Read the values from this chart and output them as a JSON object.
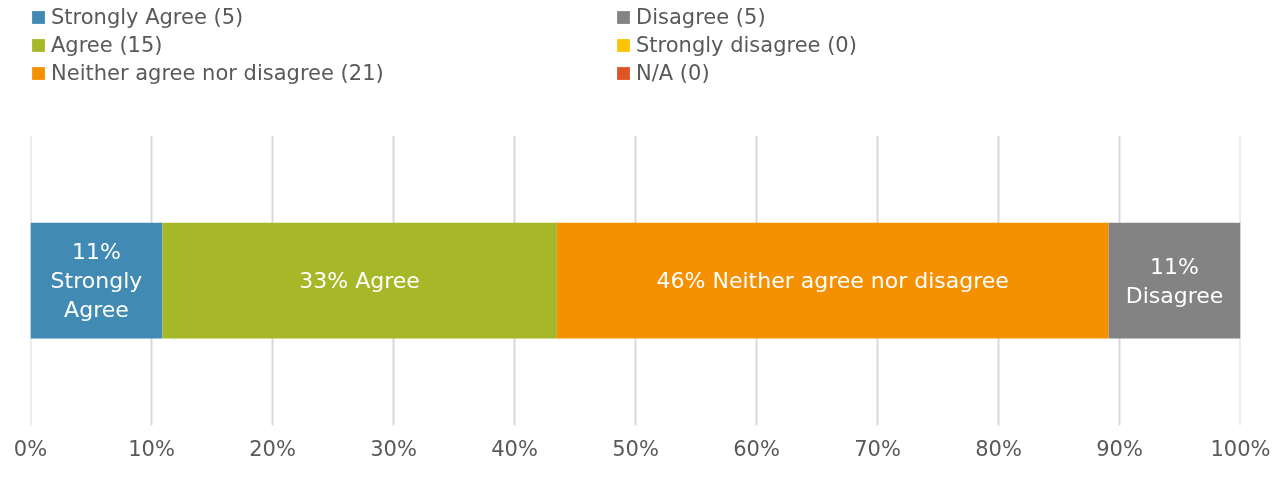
{
  "chart_data": {
    "type": "bar",
    "orientation": "horizontal",
    "stacked": true,
    "categories": [
      null
    ],
    "series": [
      {
        "name": "Strongly Agree (5)",
        "color": "#418ab3",
        "values": [
          10.9
        ],
        "value_labels": [
          "11% Strongly Agree"
        ]
      },
      {
        "name": "Agree (15)",
        "color": "#a6b727",
        "values": [
          32.6
        ],
        "value_labels": [
          "33% Agree"
        ]
      },
      {
        "name": "Neither agree nor disagree (21)",
        "color": "#f59100",
        "values": [
          45.6
        ],
        "value_labels": [
          "46% Neither agree nor disagree"
        ]
      },
      {
        "name": "Disagree (5)",
        "color": "#838383",
        "values": [
          10.9
        ],
        "value_labels": [
          "11% Disagree"
        ]
      },
      {
        "name": "Strongly disagree (0)",
        "color": "#fec306",
        "values": [
          0
        ],
        "value_labels": [
          null
        ]
      },
      {
        "name": "N/A (0)",
        "color": "#df5327",
        "values": [
          0
        ],
        "value_labels": [
          null
        ]
      }
    ],
    "xlim": [
      0,
      100
    ],
    "xticks": [
      {
        "value": 0,
        "label": "0%"
      },
      {
        "value": 10,
        "label": "10%"
      },
      {
        "value": 20,
        "label": "20%"
      },
      {
        "value": 30,
        "label": "30%"
      },
      {
        "value": 40,
        "label": "40%"
      },
      {
        "value": 50,
        "label": "50%"
      },
      {
        "value": 60,
        "label": "60%"
      },
      {
        "value": 70,
        "label": "70%"
      },
      {
        "value": 80,
        "label": "80%"
      },
      {
        "value": 90,
        "label": "90%"
      },
      {
        "value": 100,
        "label": "100%"
      }
    ],
    "grid": "x",
    "legend": "top",
    "tick_labels": "x"
  }
}
